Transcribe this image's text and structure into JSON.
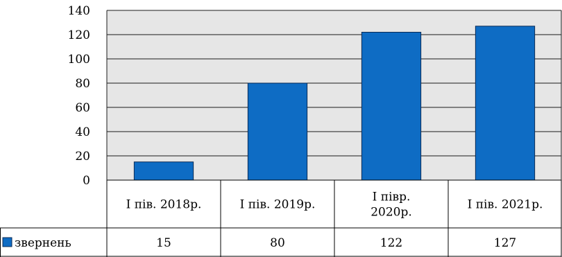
{
  "chart_data": {
    "type": "bar",
    "title": "",
    "xlabel": "",
    "ylabel": "",
    "categories": [
      [
        "І пів. 2018р."
      ],
      [
        "І пів. 2019р."
      ],
      [
        "І півр.",
        "2020р."
      ],
      [
        "І пів. 2021р."
      ]
    ],
    "series": [
      {
        "name": "звернень",
        "values": [
          15,
          80,
          122,
          127
        ]
      }
    ],
    "data_table": {
      "row_label": "звернень",
      "cells": [
        "15",
        "80",
        "122",
        "127"
      ]
    },
    "ylim": [
      0,
      140
    ],
    "yticks": [
      0,
      20,
      40,
      60,
      80,
      100,
      120,
      140
    ],
    "grid": true,
    "legend": "in data table (bottom-left)"
  },
  "colors": {
    "bar_fill": "#0e6cc4",
    "bar_stroke": "#0a2a55",
    "plot_background": "#e6e6e6",
    "gridline": "#1a1a1a",
    "table_border": "#000000"
  }
}
